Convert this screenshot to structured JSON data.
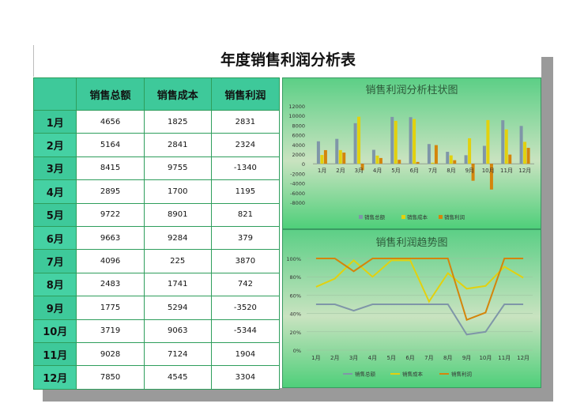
{
  "title": "年度销售利润分析表",
  "table": {
    "headers": [
      "",
      "销售总额",
      "销售成本",
      "销售利润"
    ],
    "rows": [
      {
        "month": "1月",
        "total": "4656",
        "cost": "1825",
        "profit": "2831"
      },
      {
        "month": "2月",
        "total": "5164",
        "cost": "2841",
        "profit": "2324"
      },
      {
        "month": "3月",
        "total": "8415",
        "cost": "9755",
        "profit": "-1340"
      },
      {
        "month": "4月",
        "total": "2895",
        "cost": "1700",
        "profit": "1195"
      },
      {
        "month": "5月",
        "total": "9722",
        "cost": "8901",
        "profit": "821"
      },
      {
        "month": "6月",
        "total": "9663",
        "cost": "9284",
        "profit": "379"
      },
      {
        "month": "7月",
        "total": "4096",
        "cost": "225",
        "profit": "3870"
      },
      {
        "month": "8月",
        "total": "2483",
        "cost": "1741",
        "profit": "742"
      },
      {
        "month": "9月",
        "total": "1775",
        "cost": "5294",
        "profit": "-3520"
      },
      {
        "month": "10月",
        "total": "3719",
        "cost": "9063",
        "profit": "-5344"
      },
      {
        "month": "11月",
        "total": "9028",
        "cost": "7124",
        "profit": "1904"
      },
      {
        "month": "12月",
        "total": "7850",
        "cost": "4545",
        "profit": "3304"
      }
    ]
  },
  "colors": {
    "total": "#7f96a8",
    "cost": "#e2d10e",
    "profit": "#d4850b",
    "header_bg": "#3ec99a"
  },
  "chart_data": [
    {
      "type": "bar",
      "title": "销售利润分析柱状图",
      "categories": [
        "1月",
        "2月",
        "3月",
        "4月",
        "5月",
        "6月",
        "7月",
        "8月",
        "9月",
        "10月",
        "11月",
        "12月"
      ],
      "series": [
        {
          "name": "销售总额",
          "values": [
            4656,
            5164,
            8415,
            2895,
            9722,
            9663,
            4096,
            2483,
            1775,
            3719,
            9028,
            7850
          ]
        },
        {
          "name": "销售成本",
          "values": [
            1825,
            2841,
            9755,
            1700,
            8901,
            9284,
            225,
            1741,
            5294,
            9063,
            7124,
            4545
          ]
        },
        {
          "name": "销售利润",
          "values": [
            2831,
            2324,
            -1340,
            1195,
            821,
            379,
            3870,
            742,
            -3520,
            -5344,
            1904,
            3304
          ]
        }
      ],
      "yticks": [
        "12000",
        "10000",
        "8000",
        "6000",
        "4000",
        "2000",
        "0",
        "-2000",
        "-4000",
        "-6000",
        "-8000"
      ],
      "ylim": [
        -8000,
        12000
      ],
      "legend": "bottom"
    },
    {
      "type": "line",
      "title": "销售利润趋势图",
      "categories": [
        "1月",
        "2月",
        "3月",
        "4月",
        "5月",
        "6月",
        "7月",
        "8月",
        "9月",
        "10月",
        "11月",
        "12月"
      ],
      "series": [
        {
          "name": "销售总额",
          "values": [
            0.5,
            0.5,
            0.43,
            0.5,
            0.5,
            0.5,
            0.5,
            0.5,
            0.17,
            0.2,
            0.5,
            0.5
          ]
        },
        {
          "name": "销售成本",
          "values": [
            0.69,
            0.78,
            0.98,
            0.8,
            0.98,
            0.98,
            0.53,
            0.84,
            0.67,
            0.7,
            0.91,
            0.79
          ]
        },
        {
          "name": "销售利润",
          "values": [
            1.0,
            1.0,
            0.86,
            1.0,
            1.0,
            1.0,
            1.0,
            1.0,
            0.33,
            0.41,
            1.0,
            1.0
          ]
        }
      ],
      "yticks": [
        "100%",
        "80%",
        "60%",
        "40%",
        "20%",
        "0%"
      ],
      "ylim": [
        0,
        1
      ],
      "legend": "bottom"
    }
  ]
}
